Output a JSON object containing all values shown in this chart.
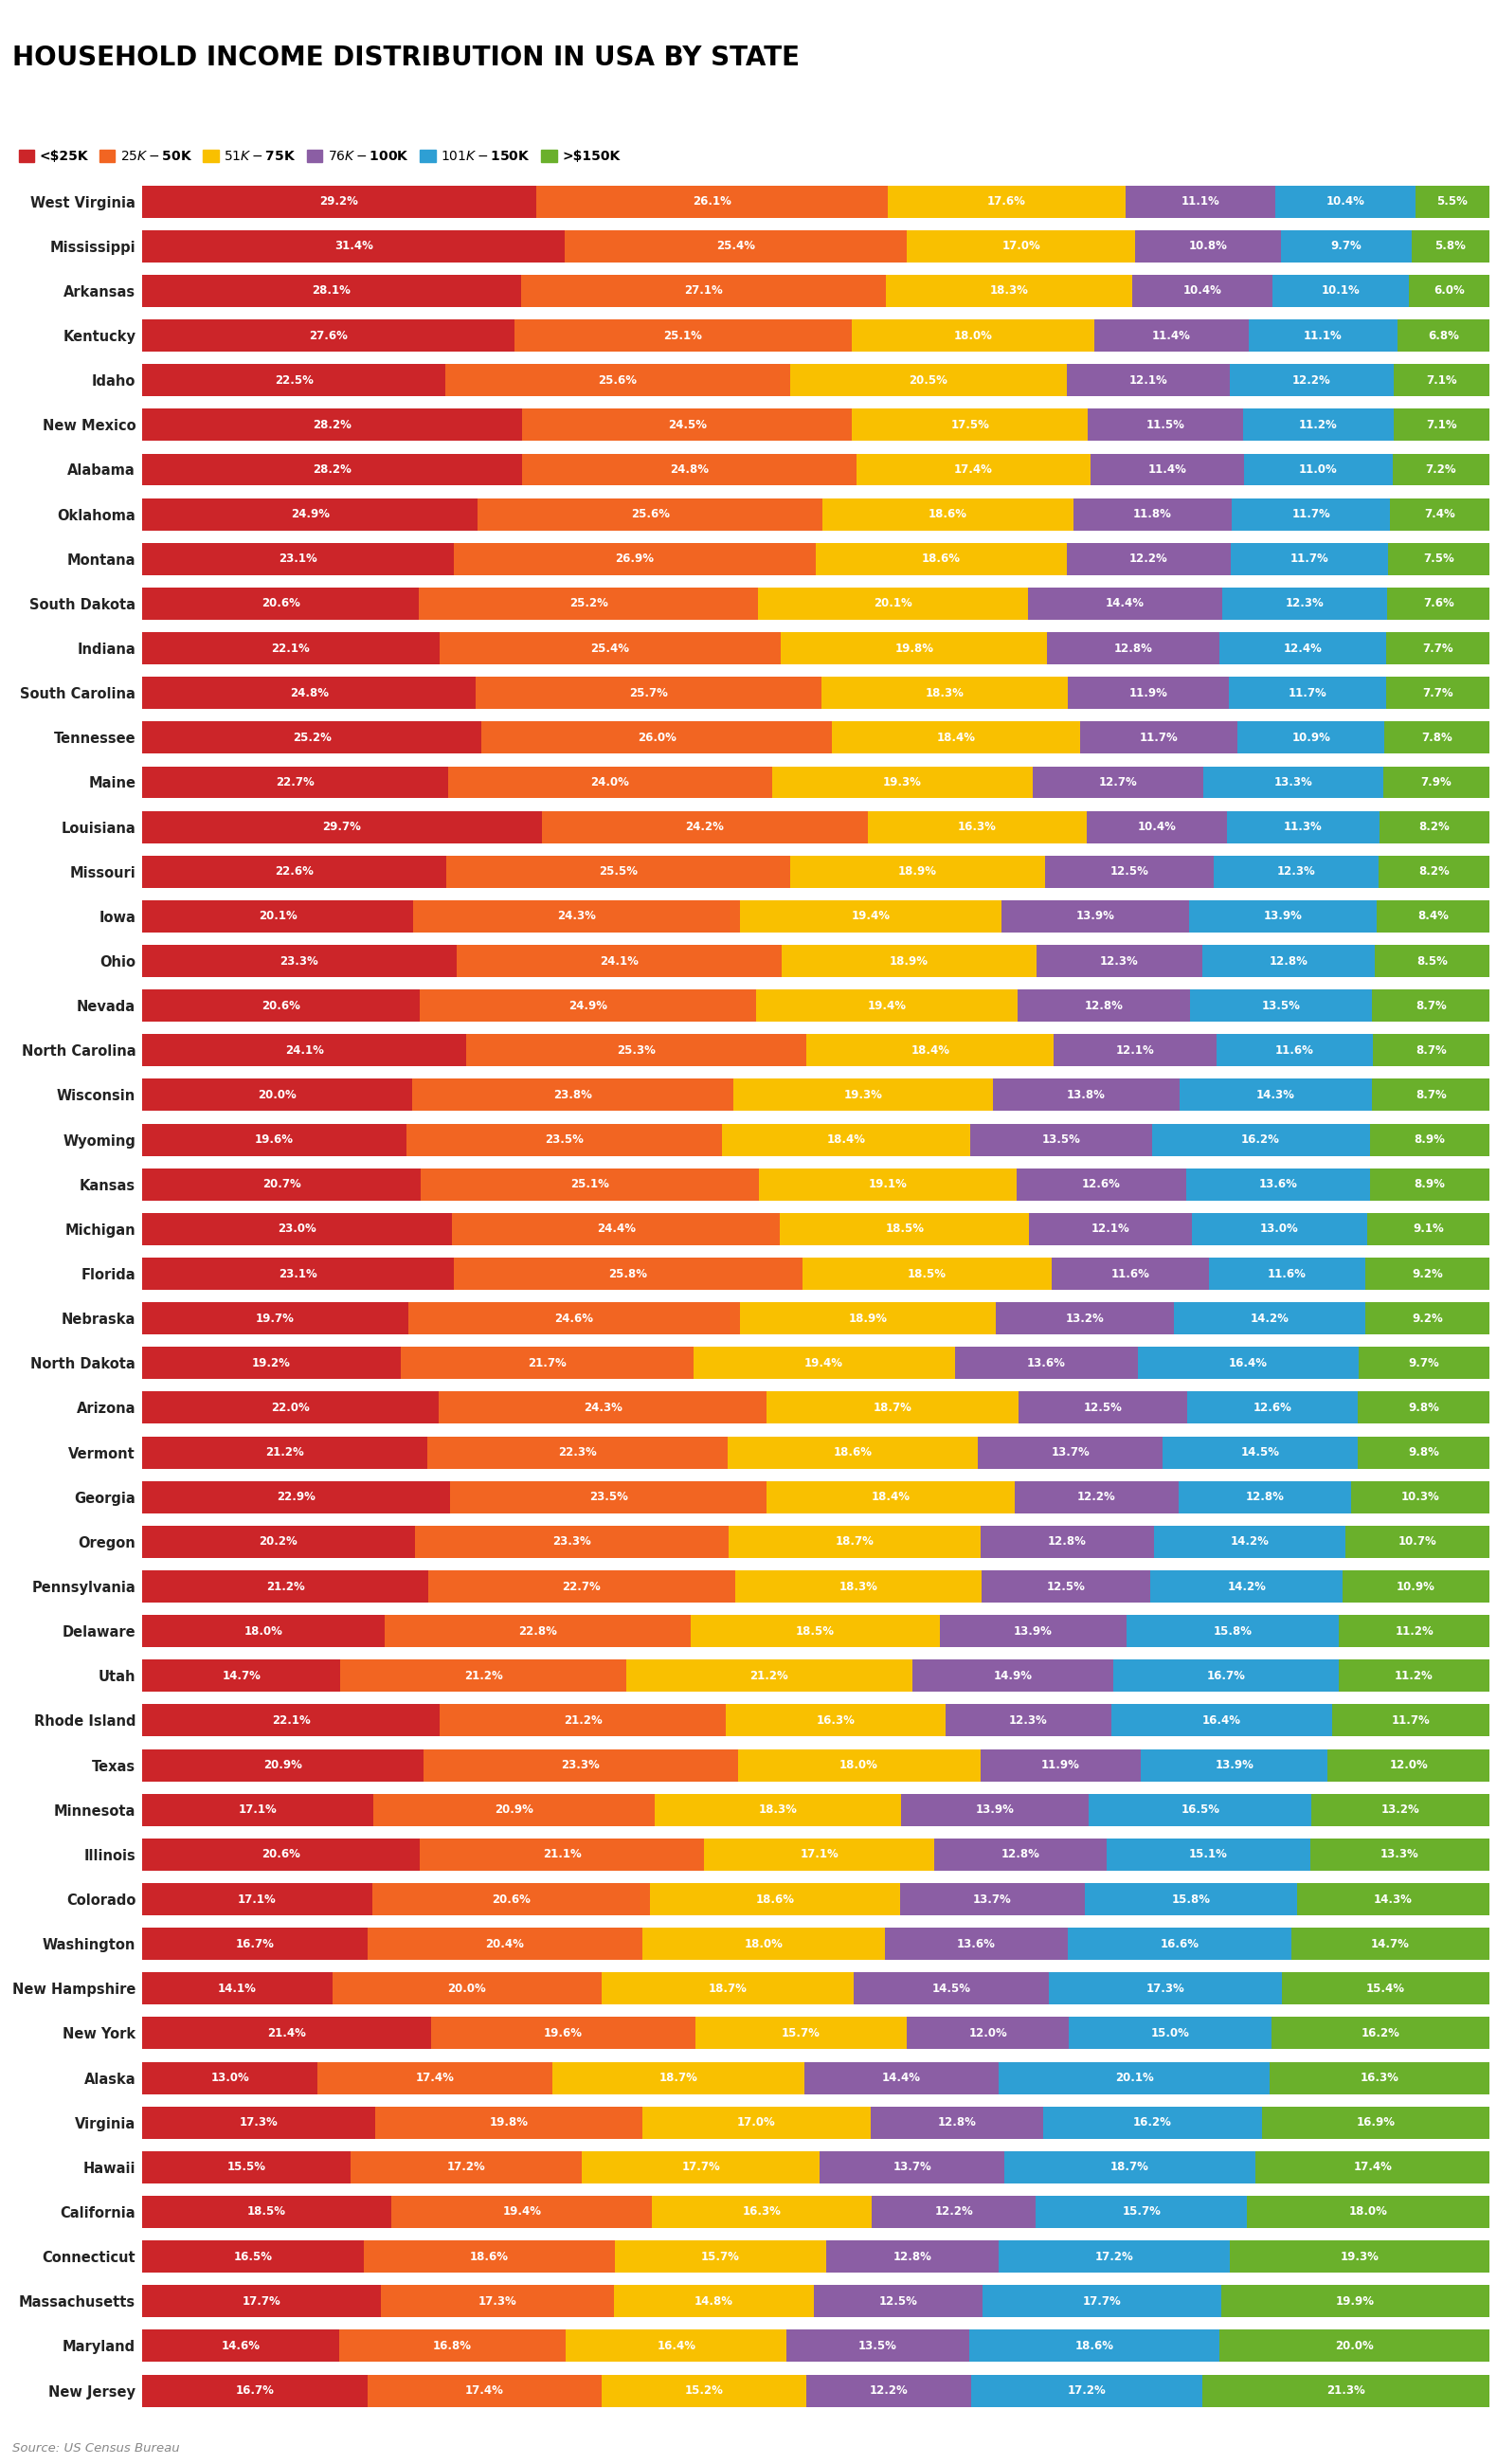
{
  "title": "HOUSEHOLD INCOME DISTRIBUTION IN USA BY STATE",
  "source": "Source: US Census Bureau",
  "categories": [
    "<$25K",
    "$25K-$50K",
    "$51K-$75K",
    "$76K-$100K",
    "$101K-$150K",
    ">$150K"
  ],
  "colors": [
    "#CC2529",
    "#F26522",
    "#F9C000",
    "#8B5EA4",
    "#2E9FD4",
    "#6AB02B"
  ],
  "states": [
    "West Virginia",
    "Mississippi",
    "Arkansas",
    "Kentucky",
    "Idaho",
    "New Mexico",
    "Alabama",
    "Oklahoma",
    "Montana",
    "South Dakota",
    "Indiana",
    "South Carolina",
    "Tennessee",
    "Maine",
    "Louisiana",
    "Missouri",
    "Iowa",
    "Ohio",
    "Nevada",
    "North Carolina",
    "Wisconsin",
    "Wyoming",
    "Kansas",
    "Michigan",
    "Florida",
    "Nebraska",
    "North Dakota",
    "Arizona",
    "Vermont",
    "Georgia",
    "Oregon",
    "Pennsylvania",
    "Delaware",
    "Utah",
    "Rhode Island",
    "Texas",
    "Minnesota",
    "Illinois",
    "Colorado",
    "Washington",
    "New Hampshire",
    "New York",
    "Alaska",
    "Virginia",
    "Hawaii",
    "California",
    "Connecticut",
    "Massachusetts",
    "Maryland",
    "New Jersey"
  ],
  "values": [
    [
      29.2,
      26.1,
      17.6,
      11.1,
      10.4,
      5.5
    ],
    [
      31.4,
      25.4,
      17.0,
      10.8,
      9.7,
      5.8
    ],
    [
      28.1,
      27.1,
      18.3,
      10.4,
      10.1,
      6.0
    ],
    [
      27.6,
      25.1,
      18.0,
      11.4,
      11.1,
      6.8
    ],
    [
      22.5,
      25.6,
      20.5,
      12.1,
      12.2,
      7.1
    ],
    [
      28.2,
      24.5,
      17.5,
      11.5,
      11.2,
      7.1
    ],
    [
      28.2,
      24.8,
      17.4,
      11.4,
      11.0,
      7.2
    ],
    [
      24.9,
      25.6,
      18.6,
      11.8,
      11.7,
      7.4
    ],
    [
      23.1,
      26.9,
      18.6,
      12.2,
      11.7,
      7.5
    ],
    [
      20.6,
      25.2,
      20.1,
      14.4,
      12.3,
      7.6
    ],
    [
      22.1,
      25.4,
      19.8,
      12.8,
      12.4,
      7.7
    ],
    [
      24.8,
      25.7,
      18.3,
      11.9,
      11.7,
      7.7
    ],
    [
      25.2,
      26.0,
      18.4,
      11.7,
      10.9,
      7.8
    ],
    [
      22.7,
      24.0,
      19.3,
      12.7,
      13.3,
      7.9
    ],
    [
      29.7,
      24.2,
      16.3,
      10.4,
      11.3,
      8.2
    ],
    [
      22.6,
      25.5,
      18.9,
      12.5,
      12.3,
      8.2
    ],
    [
      20.1,
      24.3,
      19.4,
      13.9,
      13.9,
      8.4
    ],
    [
      23.3,
      24.1,
      18.9,
      12.3,
      12.8,
      8.5
    ],
    [
      20.6,
      24.9,
      19.4,
      12.8,
      13.5,
      8.7
    ],
    [
      24.1,
      25.3,
      18.4,
      12.1,
      11.6,
      8.7
    ],
    [
      20.0,
      23.8,
      19.3,
      13.8,
      14.3,
      8.7
    ],
    [
      19.6,
      23.5,
      18.4,
      13.5,
      16.2,
      8.9
    ],
    [
      20.7,
      25.1,
      19.1,
      12.6,
      13.6,
      8.9
    ],
    [
      23.0,
      24.4,
      18.5,
      12.1,
      13.0,
      9.1
    ],
    [
      23.1,
      25.8,
      18.5,
      11.6,
      11.6,
      9.2
    ],
    [
      19.7,
      24.6,
      18.9,
      13.2,
      14.2,
      9.2
    ],
    [
      19.2,
      21.7,
      19.4,
      13.6,
      16.4,
      9.7
    ],
    [
      22.0,
      24.3,
      18.7,
      12.5,
      12.6,
      9.8
    ],
    [
      21.2,
      22.3,
      18.6,
      13.7,
      14.5,
      9.8
    ],
    [
      22.9,
      23.5,
      18.4,
      12.2,
      12.8,
      10.3
    ],
    [
      20.2,
      23.3,
      18.7,
      12.8,
      14.2,
      10.7
    ],
    [
      21.2,
      22.7,
      18.3,
      12.5,
      14.2,
      10.9
    ],
    [
      18.0,
      22.8,
      18.5,
      13.9,
      15.8,
      11.2
    ],
    [
      14.7,
      21.2,
      21.2,
      14.9,
      16.7,
      11.2
    ],
    [
      22.1,
      21.2,
      16.3,
      12.3,
      16.4,
      11.7
    ],
    [
      20.9,
      23.3,
      18.0,
      11.9,
      13.9,
      12.0
    ],
    [
      17.1,
      20.9,
      18.3,
      13.9,
      16.5,
      13.2
    ],
    [
      20.6,
      21.1,
      17.1,
      12.8,
      15.1,
      13.3
    ],
    [
      17.1,
      20.6,
      18.6,
      13.7,
      15.8,
      14.3
    ],
    [
      16.7,
      20.4,
      18.0,
      13.6,
      16.6,
      14.7
    ],
    [
      14.1,
      20.0,
      18.7,
      14.5,
      17.3,
      15.4
    ],
    [
      21.4,
      19.6,
      15.7,
      12.0,
      15.0,
      16.2
    ],
    [
      13.0,
      17.4,
      18.7,
      14.4,
      20.1,
      16.3
    ],
    [
      17.3,
      19.8,
      17.0,
      12.8,
      16.2,
      16.9
    ],
    [
      15.5,
      17.2,
      17.7,
      13.7,
      18.7,
      17.4
    ],
    [
      18.5,
      19.4,
      16.3,
      12.2,
      15.7,
      18.0
    ],
    [
      16.5,
      18.6,
      15.7,
      12.8,
      17.2,
      19.3
    ],
    [
      17.7,
      17.3,
      14.8,
      12.5,
      17.7,
      19.9
    ],
    [
      14.6,
      16.8,
      16.4,
      13.5,
      18.6,
      20.0
    ],
    [
      16.7,
      17.4,
      15.2,
      12.2,
      17.2,
      21.3
    ]
  ],
  "bar_height": 0.72,
  "label_fontsize": 8.5,
  "state_fontsize": 10.5,
  "title_fontsize": 20,
  "legend_fontsize": 10
}
